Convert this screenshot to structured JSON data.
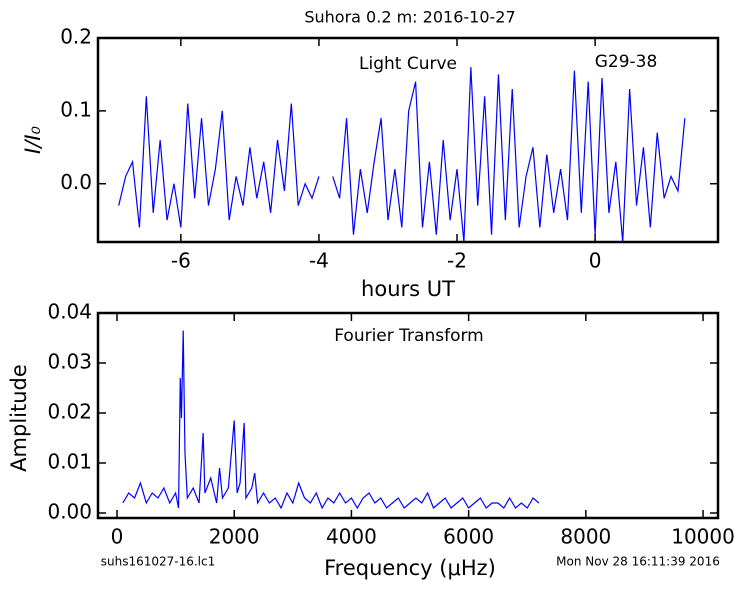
{
  "chart_data": [
    {
      "type": "line",
      "title": "Suhora 0.2 m:  2016-10-27",
      "xlabel": "hours UT",
      "ylabel": "I/I₀",
      "annotations": [
        "Light Curve",
        "G29-38"
      ],
      "color": "#0000ff",
      "x": [
        -6.9,
        -6.8,
        -6.7,
        -6.6,
        -6.5,
        -6.4,
        -6.3,
        -6.2,
        -6.1,
        -6.0,
        -5.9,
        -5.8,
        -5.7,
        -5.6,
        -5.5,
        -5.4,
        -5.3,
        -5.2,
        -5.1,
        -5.0,
        -4.9,
        -4.8,
        -4.7,
        -4.6,
        -4.5,
        -4.4,
        -4.3,
        -4.2,
        -4.1,
        -4.0,
        -3.9,
        -3.8,
        -3.7,
        -3.6,
        -3.5,
        -3.4,
        -3.3,
        -3.2,
        -3.1,
        -3.0,
        -2.9,
        -2.8,
        -2.7,
        -2.6,
        -2.5,
        -2.4,
        -2.3,
        -2.2,
        -2.1,
        -2.0,
        -1.9,
        -1.8,
        -1.7,
        -1.6,
        -1.5,
        -1.4,
        -1.3,
        -1.2,
        -1.1,
        -1.0,
        -0.9,
        -0.8,
        -0.7,
        -0.6,
        -0.5,
        -0.4,
        -0.3,
        -0.2,
        -0.1,
        0.0,
        0.1,
        0.2,
        0.3,
        0.4,
        0.5,
        0.6,
        0.7,
        0.8,
        0.9,
        1.0,
        1.1,
        1.2,
        1.3
      ],
      "values": [
        -0.03,
        0.01,
        0.03,
        -0.06,
        0.12,
        -0.04,
        0.06,
        -0.05,
        0.0,
        -0.06,
        0.11,
        -0.02,
        0.09,
        -0.03,
        0.02,
        0.1,
        -0.05,
        0.01,
        -0.03,
        0.05,
        -0.02,
        0.03,
        -0.04,
        0.06,
        -0.01,
        0.11,
        -0.03,
        0.0,
        -0.02,
        0.01,
        null,
        0.01,
        -0.02,
        0.09,
        -0.07,
        0.02,
        -0.04,
        0.03,
        0.09,
        -0.05,
        0.02,
        -0.06,
        0.1,
        0.14,
        -0.06,
        0.03,
        -0.07,
        0.06,
        -0.05,
        0.02,
        -0.08,
        0.16,
        -0.03,
        0.12,
        -0.07,
        0.15,
        -0.05,
        0.13,
        -0.06,
        0.01,
        0.05,
        -0.06,
        0.04,
        -0.04,
        0.02,
        -0.05,
        0.155,
        -0.04,
        0.14,
        -0.07,
        0.145,
        -0.04,
        0.03,
        -0.08,
        0.13,
        -0.03,
        0.05,
        -0.06,
        0.07,
        -0.02,
        0.01,
        -0.01,
        0.09
      ],
      "xlim": [
        -7.2,
        1.78
      ],
      "ylim": [
        -0.08,
        0.2
      ],
      "xticks": [
        -6,
        -4,
        -2,
        0
      ],
      "yticks": [
        {
          "value": 0,
          "label": "0.0"
        },
        0.1,
        0.2
      ]
    },
    {
      "type": "line",
      "xlabel": "Frequency (μHz)",
      "ylabel": "Amplitude",
      "annotations": [
        "Fourier Transform"
      ],
      "footer_left": "suhs161027-16.lc1",
      "footer_right": "Mon Nov 28 16:11:39 2016",
      "color": "#0000ff",
      "x": [
        100,
        200,
        300,
        400,
        500,
        600,
        700,
        800,
        900,
        1000,
        1050,
        1080,
        1100,
        1130,
        1160,
        1200,
        1300,
        1400,
        1470,
        1500,
        1600,
        1700,
        1750,
        1800,
        1900,
        2000,
        2050,
        2100,
        2170,
        2200,
        2300,
        2350,
        2400,
        2500,
        2600,
        2700,
        2800,
        2900,
        3000,
        3100,
        3200,
        3300,
        3400,
        3500,
        3600,
        3700,
        3800,
        3900,
        4000,
        4100,
        4200,
        4300,
        4400,
        4500,
        4600,
        4700,
        4800,
        4900,
        5000,
        5100,
        5200,
        5300,
        5400,
        5500,
        5600,
        5700,
        5800,
        5900,
        6000,
        6100,
        6200,
        6300,
        6400,
        6500,
        6600,
        6700,
        6800,
        6900,
        7000,
        7100,
        7200
      ],
      "values": [
        0.002,
        0.004,
        0.003,
        0.006,
        0.002,
        0.004,
        0.003,
        0.005,
        0.002,
        0.004,
        0.001,
        0.027,
        0.019,
        0.0365,
        0.012,
        0.003,
        0.005,
        0.002,
        0.016,
        0.004,
        0.007,
        0.002,
        0.009,
        0.003,
        0.005,
        0.0185,
        0.004,
        0.006,
        0.018,
        0.003,
        0.005,
        0.008,
        0.002,
        0.004,
        0.002,
        0.003,
        0.001,
        0.004,
        0.002,
        0.006,
        0.003,
        0.002,
        0.004,
        0.001,
        0.003,
        0.002,
        0.004,
        0.002,
        0.003,
        0.001,
        0.003,
        0.004,
        0.002,
        0.003,
        0.001,
        0.002,
        0.003,
        0.001,
        0.002,
        0.003,
        0.002,
        0.004,
        0.001,
        0.002,
        0.003,
        0.001,
        0.002,
        0.003,
        0.001,
        0.002,
        0.003,
        0.001,
        0.002,
        0.002,
        0.001,
        0.003,
        0.001,
        0.002,
        0.001,
        0.003,
        0.002
      ],
      "xlim": [
        -324,
        10255
      ],
      "ylim": [
        -0.001,
        0.04
      ],
      "xticks": [
        0,
        2000,
        4000,
        6000,
        8000,
        10000
      ],
      "yticks": [
        {
          "value": 0,
          "label": "0.00"
        },
        {
          "value": 0.01,
          "label": "0.01"
        },
        {
          "value": 0.02,
          "label": "0.02"
        },
        {
          "value": 0.03,
          "label": "0.03"
        },
        {
          "value": 0.04,
          "label": "0.04"
        }
      ]
    }
  ]
}
